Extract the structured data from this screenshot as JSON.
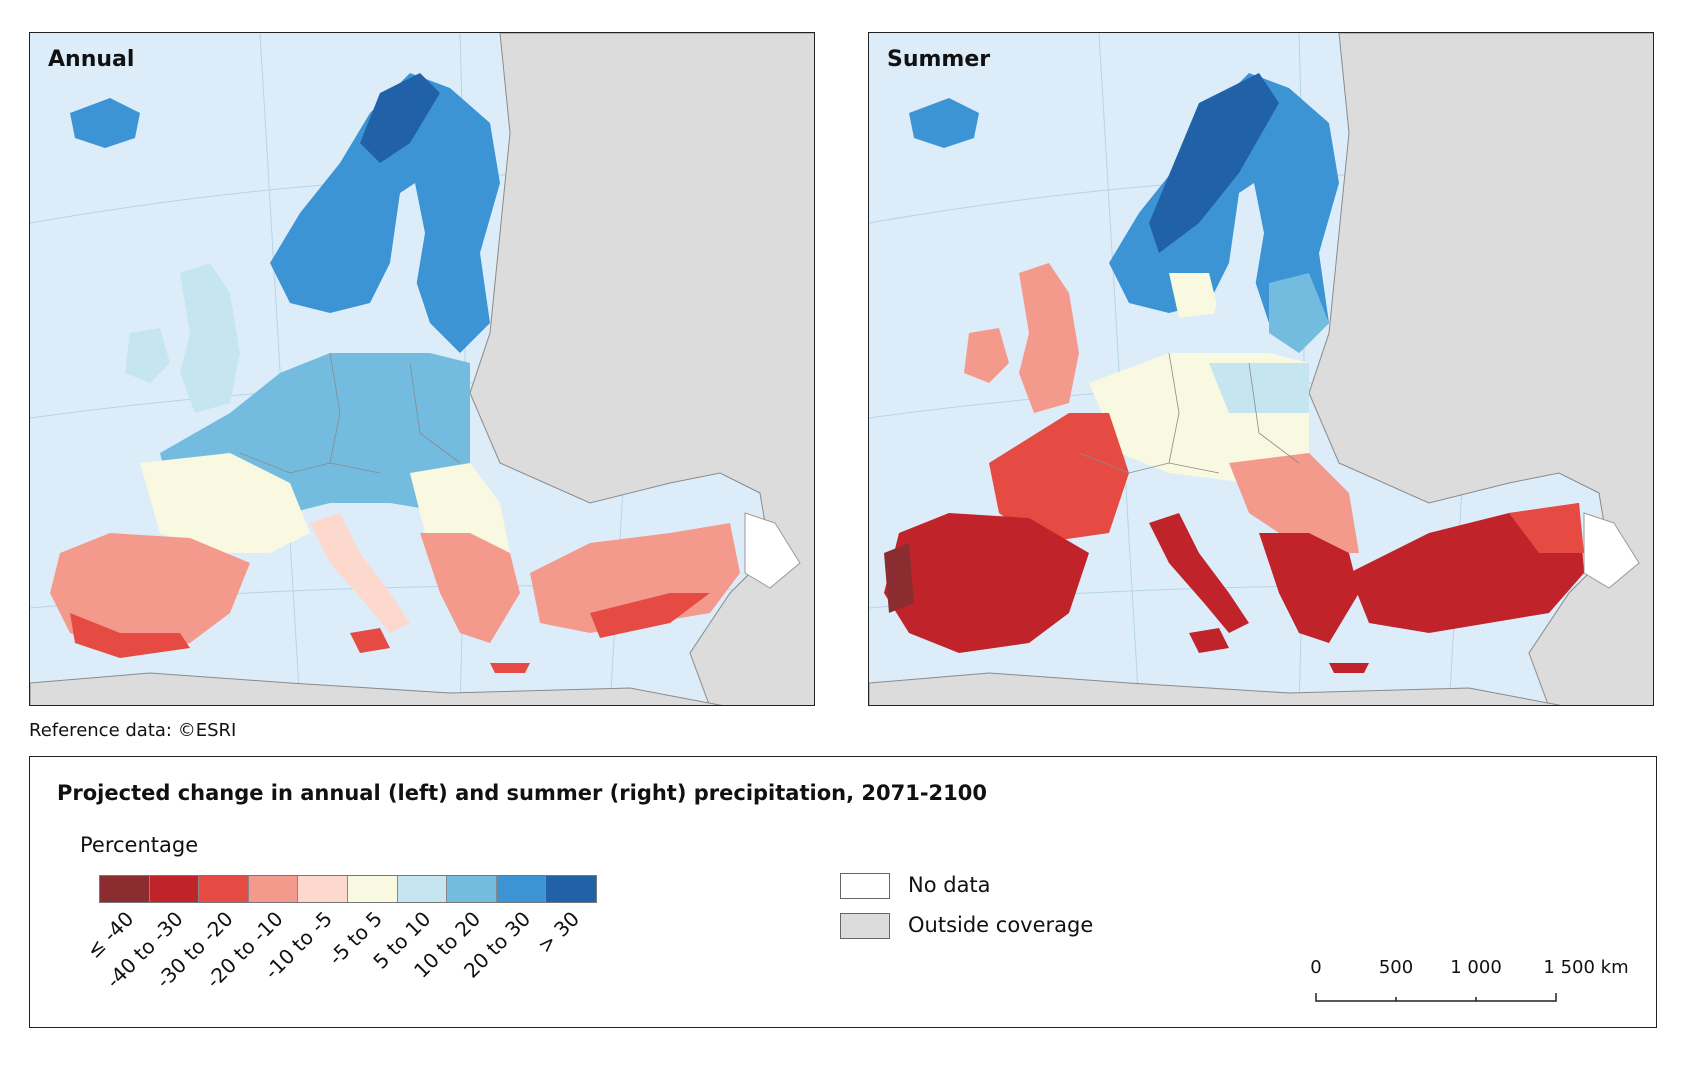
{
  "panels": [
    {
      "id": "annual",
      "title": "Annual"
    },
    {
      "id": "summer",
      "title": "Summer"
    }
  ],
  "reference": "Reference data: ©ESRI",
  "legend": {
    "title": "Projected change in annual (left) and summer (right) precipitation, 2071-2100",
    "subtitle": "Percentage",
    "classes": [
      {
        "label": "≤ -40",
        "color": "#8b2c31"
      },
      {
        "label": "-40 to -30",
        "color": "#c1232b"
      },
      {
        "label": "-30 to -20",
        "color": "#e64b43"
      },
      {
        "label": "-20 to -10",
        "color": "#f39a8d"
      },
      {
        "label": "-10 to -5",
        "color": "#fcd9cc"
      },
      {
        "label": "-5 to 5",
        "color": "#f9f8e0"
      },
      {
        "label": "5 to 10",
        "color": "#c5e6f1"
      },
      {
        "label": "10 to 20",
        "color": "#73bce0"
      },
      {
        "label": "20 to 30",
        "color": "#3d94d4"
      },
      {
        "label": "> 30",
        "color": "#2161a8"
      }
    ],
    "no_data": {
      "label": "No data",
      "color": "#ffffff"
    },
    "outside": {
      "label": "Outside coverage",
      "color": "#dcdcdc"
    }
  },
  "scale": {
    "ticks": [
      "0",
      "500",
      "1 000",
      "1 500 km"
    ]
  },
  "colors": {
    "sea": "#dcedf9",
    "outside": "#dcdcdc",
    "border": "#8a8a8a"
  }
}
